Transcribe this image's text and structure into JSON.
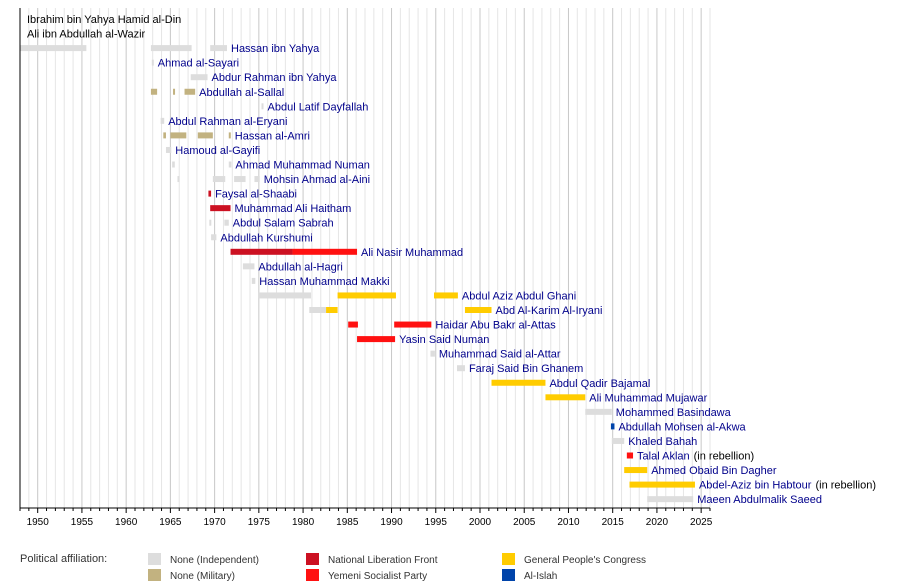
{
  "chart_data": {
    "type": "timeline",
    "x_axis": {
      "range": [
        1948,
        2026
      ],
      "ticks": [
        1950,
        1955,
        1960,
        1965,
        1970,
        1975,
        1980,
        1985,
        1990,
        1995,
        2000,
        2005,
        2010,
        2015,
        2020,
        2025
      ],
      "grid": "vertical"
    },
    "colors": {
      "ind": "#dddddd",
      "mil": "#c2b280",
      "nlf": "#cc1122",
      "ysp": "#ff1111",
      "gpc": "#ffcc00",
      "islah": "#0044aa"
    },
    "legend": {
      "title": "Political affiliation:",
      "placement": "bottom",
      "items": [
        {
          "key": "ind",
          "label": "None (Independent)"
        },
        {
          "key": "mil",
          "label": "None (Military)"
        },
        {
          "key": "nlf",
          "label": "National Liberation Front"
        },
        {
          "key": "ysp",
          "label": "Yemeni Socialist Party"
        },
        {
          "key": "gpc",
          "label": "General People's Congress"
        },
        {
          "key": "islah",
          "label": "Al-Islah"
        }
      ]
    },
    "rows": [
      {
        "name": "Ibrahim bin Yahya Hamid al-Din",
        "note": "",
        "link": false,
        "segments": []
      },
      {
        "name": "Ali ibn Abdullah al-Wazir",
        "note": "",
        "link": false,
        "segments": []
      },
      {
        "name": "Hassan ibn Yahya",
        "note": "",
        "link": true,
        "segments": [
          [
            1948.0,
            1955.5,
            "ind"
          ],
          [
            1962.8,
            1967.4,
            "ind"
          ],
          [
            1969.5,
            1971.4,
            "ind"
          ]
        ]
      },
      {
        "name": "Ahmad al-Sayari",
        "note": "",
        "link": true,
        "segments": [
          [
            1962.9,
            1963.1,
            "ind"
          ]
        ]
      },
      {
        "name": "Abdur Rahman ibn Yahya",
        "note": "",
        "link": true,
        "segments": [
          [
            1967.3,
            1969.2,
            "ind"
          ]
        ]
      },
      {
        "name": "Abdullah al-Sallal",
        "note": "",
        "link": true,
        "segments": [
          [
            1962.8,
            1963.5,
            "mil"
          ],
          [
            1965.3,
            1965.5,
            "mil"
          ],
          [
            1966.6,
            1967.8,
            "mil"
          ]
        ]
      },
      {
        "name": "Abdul Latif Dayfallah",
        "note": "",
        "link": true,
        "segments": [
          [
            1975.3,
            1975.5,
            "ind"
          ]
        ]
      },
      {
        "name": "Abdul Rahman al-Eryani",
        "note": "",
        "link": true,
        "segments": [
          [
            1963.9,
            1964.3,
            "ind"
          ]
        ]
      },
      {
        "name": "Hassan al-Amri",
        "note": "",
        "link": true,
        "segments": [
          [
            1964.2,
            1964.5,
            "mil"
          ],
          [
            1965.0,
            1966.8,
            "mil"
          ],
          [
            1968.1,
            1969.8,
            "mil"
          ],
          [
            1971.6,
            1971.8,
            "mil"
          ]
        ]
      },
      {
        "name": "Hamoud al-Gayifi",
        "note": "",
        "link": true,
        "segments": [
          [
            1964.5,
            1965.1,
            "ind"
          ]
        ]
      },
      {
        "name": "Ahmad Muhammad Numan",
        "note": "",
        "link": true,
        "segments": [
          [
            1965.2,
            1965.5,
            "ind"
          ],
          [
            1971.6,
            1971.9,
            "ind"
          ]
        ]
      },
      {
        "name": "Mohsin Ahmad al-Aini",
        "note": "",
        "link": true,
        "segments": [
          [
            1965.8,
            1966.0,
            "ind"
          ],
          [
            1969.8,
            1971.2,
            "ind"
          ],
          [
            1972.2,
            1973.5,
            "ind"
          ],
          [
            1974.5,
            1975.1,
            "ind"
          ]
        ]
      },
      {
        "name": "Faysal al-Shaabi",
        "note": "",
        "link": true,
        "segments": [
          [
            1969.3,
            1969.6,
            "nlf"
          ]
        ]
      },
      {
        "name": "Muhammad Ali Haitham",
        "note": "",
        "link": true,
        "segments": [
          [
            1969.5,
            1971.8,
            "nlf"
          ]
        ]
      },
      {
        "name": "Abdul Salam Sabrah",
        "note": "",
        "link": true,
        "segments": [
          [
            1969.4,
            1969.6,
            "ind"
          ],
          [
            1971.1,
            1971.6,
            "ind"
          ]
        ]
      },
      {
        "name": "Abdullah Kurshumi",
        "note": "",
        "link": true,
        "segments": [
          [
            1969.6,
            1970.2,
            "ind"
          ]
        ]
      },
      {
        "name": "Ali Nasir Muhammad",
        "note": "",
        "link": true,
        "segments": [
          [
            1971.8,
            1978.8,
            "nlf"
          ],
          [
            1978.8,
            1986.1,
            "ysp"
          ]
        ]
      },
      {
        "name": "Abdullah al-Hagri",
        "note": "",
        "link": true,
        "segments": [
          [
            1973.2,
            1974.5,
            "ind"
          ]
        ]
      },
      {
        "name": "Hassan Muhammad Makki",
        "note": "",
        "link": true,
        "segments": [
          [
            1974.2,
            1974.6,
            "ind"
          ]
        ]
      },
      {
        "name": "Abdul Aziz Abdul Ghani",
        "note": "",
        "link": true,
        "segments": [
          [
            1975.0,
            1980.9,
            "ind"
          ],
          [
            1983.9,
            1990.5,
            "gpc"
          ],
          [
            1994.8,
            1997.5,
            "gpc"
          ]
        ]
      },
      {
        "name": "Abd Al-Karim Al-Iryani",
        "note": "",
        "link": true,
        "segments": [
          [
            1980.7,
            1982.6,
            "ind"
          ],
          [
            1982.6,
            1983.9,
            "gpc"
          ],
          [
            1998.3,
            2001.3,
            "gpc"
          ]
        ]
      },
      {
        "name": "Haidar Abu Bakr al-Attas",
        "note": "",
        "link": true,
        "segments": [
          [
            1985.1,
            1986.2,
            "ysp"
          ],
          [
            1990.3,
            1994.5,
            "ysp"
          ]
        ]
      },
      {
        "name": "Yasin Said Numan",
        "note": "",
        "link": true,
        "segments": [
          [
            1986.1,
            1990.4,
            "ysp"
          ]
        ]
      },
      {
        "name": "Muhammad Said al-Attar",
        "note": "",
        "link": true,
        "segments": [
          [
            1994.4,
            1994.9,
            "ind"
          ]
        ]
      },
      {
        "name": "Faraj Said Bin Ghanem",
        "note": "",
        "link": true,
        "segments": [
          [
            1997.4,
            1998.3,
            "ind"
          ]
        ]
      },
      {
        "name": "Abdul Qadir Bajamal",
        "note": "",
        "link": true,
        "segments": [
          [
            2001.3,
            2007.4,
            "gpc"
          ]
        ]
      },
      {
        "name": "Ali Muhammad Mujawar",
        "note": "",
        "link": true,
        "segments": [
          [
            2007.4,
            2011.9,
            "gpc"
          ]
        ]
      },
      {
        "name": "Mohammed Basindawa",
        "note": "",
        "link": true,
        "segments": [
          [
            2011.9,
            2014.9,
            "ind"
          ]
        ]
      },
      {
        "name": "Abdullah Mohsen al-Akwa",
        "note": "",
        "link": true,
        "segments": [
          [
            2014.8,
            2015.2,
            "islah"
          ]
        ]
      },
      {
        "name": "Khaled Bahah",
        "note": "",
        "link": true,
        "segments": [
          [
            2014.9,
            2016.3,
            "ind"
          ]
        ]
      },
      {
        "name": "Talal Aklan",
        "note": "(in rebellion)",
        "link": true,
        "segments": [
          [
            2016.6,
            2017.3,
            "ysp"
          ]
        ]
      },
      {
        "name": "Ahmed Obaid Bin Dagher",
        "note": "",
        "link": true,
        "segments": [
          [
            2016.3,
            2018.9,
            "gpc"
          ]
        ]
      },
      {
        "name": "Abdel-Aziz bin Habtour",
        "note": "(in rebellion)",
        "link": true,
        "segments": [
          [
            2016.9,
            2024.3,
            "gpc"
          ]
        ]
      },
      {
        "name": "Maeen Abdulmalik Saeed",
        "note": "",
        "link": true,
        "segments": [
          [
            2018.9,
            2024.1,
            "ind"
          ]
        ]
      }
    ]
  }
}
